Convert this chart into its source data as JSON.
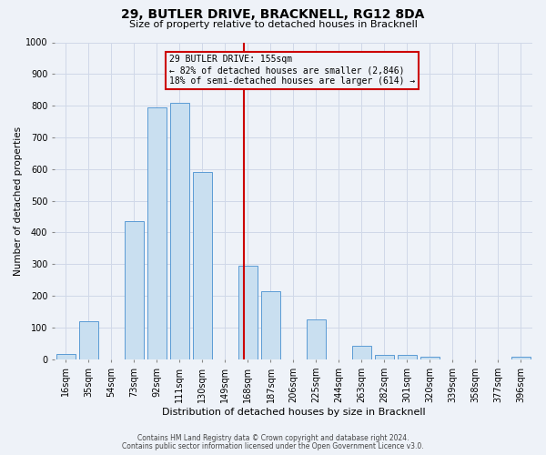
{
  "title": "29, BUTLER DRIVE, BRACKNELL, RG12 8DA",
  "subtitle": "Size of property relative to detached houses in Bracknell",
  "xlabel": "Distribution of detached houses by size in Bracknell",
  "ylabel": "Number of detached properties",
  "bin_labels": [
    "16sqm",
    "35sqm",
    "54sqm",
    "73sqm",
    "92sqm",
    "111sqm",
    "130sqm",
    "149sqm",
    "168sqm",
    "187sqm",
    "206sqm",
    "225sqm",
    "244sqm",
    "263sqm",
    "282sqm",
    "301sqm",
    "320sqm",
    "339sqm",
    "358sqm",
    "377sqm",
    "396sqm"
  ],
  "bar_heights": [
    18,
    120,
    0,
    435,
    795,
    808,
    590,
    0,
    295,
    215,
    0,
    125,
    0,
    42,
    14,
    14,
    8,
    0,
    0,
    0,
    8
  ],
  "bar_color": "#c9dff0",
  "bar_edge_color": "#5b9bd5",
  "grid_color": "#d0d8e8",
  "background_color": "#eef2f8",
  "vline_x": 8,
  "vline_color": "#cc0000",
  "annotation_box_text": "29 BUTLER DRIVE: 155sqm\n← 82% of detached houses are smaller (2,846)\n18% of semi-detached houses are larger (614) →",
  "annotation_box_color": "#cc0000",
  "ylim": [
    0,
    1000
  ],
  "yticks": [
    0,
    100,
    200,
    300,
    400,
    500,
    600,
    700,
    800,
    900,
    1000
  ],
  "footer_line1": "Contains HM Land Registry data © Crown copyright and database right 2024.",
  "footer_line2": "Contains public sector information licensed under the Open Government Licence v3.0.",
  "title_fontsize": 10,
  "subtitle_fontsize": 8,
  "xlabel_fontsize": 8,
  "ylabel_fontsize": 7.5,
  "tick_fontsize": 7,
  "footer_fontsize": 5.5
}
